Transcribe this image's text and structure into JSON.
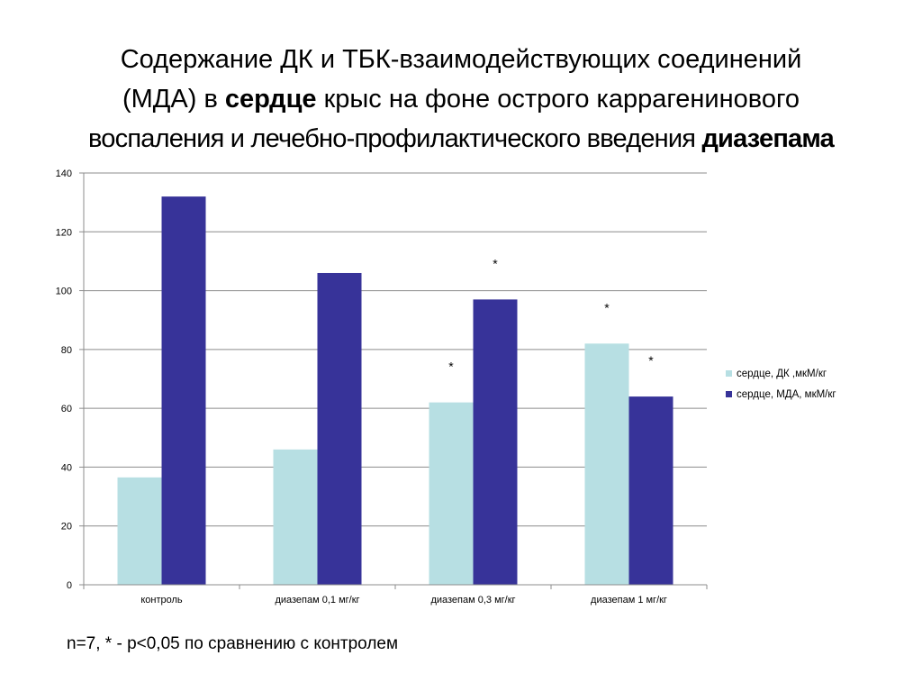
{
  "title": {
    "line1": "Содержание ДК и ТБК-взаимодействующих соединений",
    "line2_pre": "(МДА) в ",
    "line2_bold": "сердце",
    "line2_post": " крыс на фоне острого каррагенинового",
    "line3_pre": "воспаления и лечебно-профилактического введения ",
    "line3_bold": "диазепама"
  },
  "footnote": "n=7, * - p<0,05 по сравнению с контролем",
  "chart_data": {
    "type": "bar",
    "categories": [
      "контроль",
      "диазепам 0,1 мг/кг",
      "диазепам 0,3 мг/кг",
      "диазепам 1 мг/кг"
    ],
    "series": [
      {
        "name": "сердце, ДК ,мкМ/кг",
        "values": [
          36.5,
          46,
          62,
          82
        ],
        "color": "#b7dfe3",
        "significance": [
          "",
          "",
          "*",
          "*"
        ]
      },
      {
        "name": "сердце, МДА, мкМ/кг",
        "values": [
          132,
          106,
          97,
          64
        ],
        "color": "#373399",
        "significance": [
          "",
          "",
          "*",
          "*"
        ]
      }
    ],
    "ylim": [
      0,
      140
    ],
    "yticks": [
      "0",
      "20",
      "40",
      "60",
      "80",
      "100",
      "120",
      "140"
    ],
    "grid": true,
    "legend": "right",
    "significance_marker": "*"
  }
}
